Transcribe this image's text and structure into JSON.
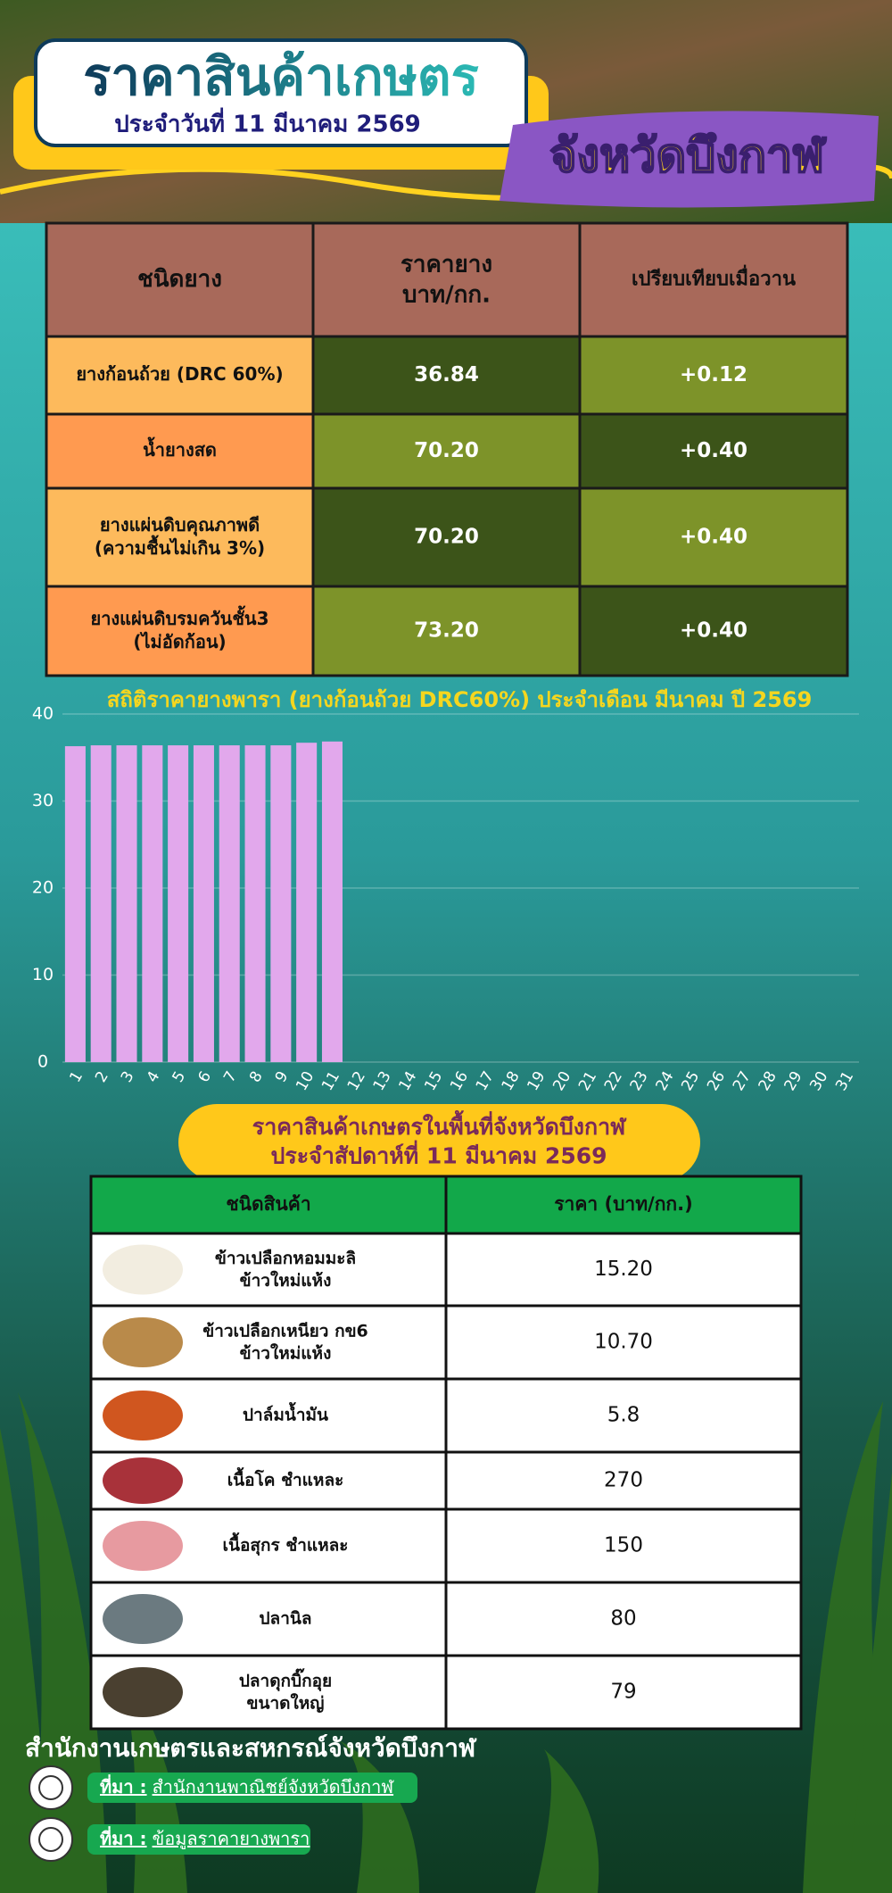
{
  "header": {
    "title": "ราคาสินค้าเกษตร",
    "date": "ประจำวันที่ 11 มีนาคม 2569",
    "province": "จังหวัดบึงกาฬ"
  },
  "rubber_table": {
    "headers": [
      "ชนิดยาง",
      "ราคายาง\nบาท/กก.",
      "เปรียบเทียบเมื่อวาน"
    ],
    "rows": [
      [
        "ยางก้อนถ้วย (DRC 60%)",
        "36.84",
        "+0.12"
      ],
      [
        "น้ำยางสด",
        "70.20",
        "+0.40"
      ],
      [
        "ยางแผ่นดิบคุณภาพดี\n(ความชื้นไม่เกิน 3%)",
        "70.20",
        "+0.40"
      ],
      [
        "ยางแผ่นดิบรมควันชั้น3\n(ไม่อัดก้อน)",
        "73.20",
        "+0.40"
      ]
    ]
  },
  "chart_data": {
    "type": "bar",
    "title": "สถิติราคายางพารา (ยางก้อนถ้วย DRC60%) ประจำเดือน มีนาคม ปี 2569",
    "categories": [
      "1",
      "2",
      "3",
      "4",
      "5",
      "6",
      "7",
      "8",
      "9",
      "10",
      "11",
      "12",
      "13",
      "14",
      "15",
      "16",
      "17",
      "18",
      "19",
      "20",
      "21",
      "22",
      "23",
      "24",
      "25",
      "26",
      "27",
      "28",
      "29",
      "30",
      "31"
    ],
    "values": [
      36.3,
      36.4,
      36.4,
      36.4,
      36.4,
      36.4,
      36.4,
      36.4,
      36.4,
      36.7,
      36.84,
      null,
      null,
      null,
      null,
      null,
      null,
      null,
      null,
      null,
      null,
      null,
      null,
      null,
      null,
      null,
      null,
      null,
      null,
      null,
      null
    ],
    "color": "#e2a8ec",
    "ylim": [
      0,
      40
    ],
    "yticks": [
      0,
      10,
      20,
      30,
      40
    ],
    "grid": true
  },
  "products": {
    "title": "ราคาสินค้าเกษตรในพื้นที่จังหวัดบึงกาฬ\nประจำสัปดาห์ที่ 11 มีนาคม 2569",
    "headers": [
      "ชนิดสินค้า",
      "ราคา (บาท/กก.)"
    ],
    "rows": [
      [
        "ข้าวเปลือกหอมมะลิ\nข้าวใหม่แห้ง",
        "15.20"
      ],
      [
        "ข้าวเปลือกเหนียว กข6\nข้าวใหม่แห้ง",
        "10.70"
      ],
      [
        "ปาล์มน้ำมัน",
        "5.8"
      ],
      [
        "เนื้อโค ชำแหละ",
        "270"
      ],
      [
        "เนื้อสุกร ชำแหละ",
        "150"
      ],
      [
        "ปลานิล",
        "80"
      ],
      [
        "ปลาดุกบิ๊กอุย\nขนาดใหญ่",
        "79"
      ]
    ]
  },
  "footer": {
    "office": "สำนักงานเกษตรและสหกรณ์จังหวัดบึงกาฬ",
    "sources": [
      {
        "label": "ที่มา :",
        "text": "สำนักงานพาณิชย์จังหวัดบึงกาฬ"
      },
      {
        "label": "ที่มา :",
        "text": "ข้อมูลราคายางพารา"
      }
    ]
  }
}
